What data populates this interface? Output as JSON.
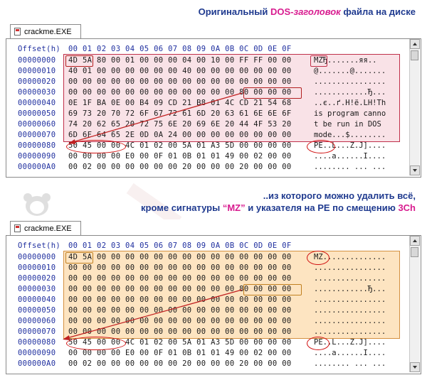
{
  "caption_top": {
    "pre": "Оригинальный ",
    "accent": "DOS-",
    "accent_italic": "заголовок",
    "post": " файла на диске"
  },
  "caption_mid": {
    "line1": "..из которого можно удалить всё,",
    "line2_pre": "кроме сигнатуры ",
    "line2_mz": "“MZ”",
    "line2_mid": " и указателя на PE по смещению ",
    "line2_off": "3Ch"
  },
  "colors": {
    "caption": "#1f3a8f",
    "accent": "#d81b8f",
    "offset": "#e07000",
    "box_red": "#b22020",
    "ellipse": "#d01010",
    "hl_pink": "#e896aa",
    "hl_orange": "#fac476"
  },
  "window_top": {
    "tab": "crackme.EXE",
    "header_offset": "Offset(h)",
    "header_hex": "00 01 02 03 04 05 06 07 08 09 0A 0B 0C 0D 0E 0F",
    "rows": [
      {
        "off": "00000000",
        "hex": "4D 5A 80 00 01 00 00 00 04 00 10 00 FF FF 00 00",
        "asc": "MZЂ.......яя.."
      },
      {
        "off": "00000010",
        "hex": "40 01 00 00 00 00 00 00 40 00 00 00 00 00 00 00",
        "asc": "@.......@......."
      },
      {
        "off": "00000020",
        "hex": "00 00 00 00 00 00 00 00 00 00 00 00 00 00 00 00",
        "asc": "................"
      },
      {
        "off": "00000030",
        "hex": "00 00 00 00 00 00 00 00 00 00 00 00 80 00 00 00",
        "asc": "............Ђ..."
      },
      {
        "off": "00000040",
        "hex": "0E 1F BA 0E 00 B4 09 CD 21 B8 01 4C CD 21 54 68",
        "asc": "..є..ґ.Н!ё.LН!Th"
      },
      {
        "off": "00000050",
        "hex": "69 73 20 70 72 6F 67 72 61 6D 20 63 61 6E 6E 6F",
        "asc": "is program canno"
      },
      {
        "off": "00000060",
        "hex": "74 20 62 65 20 72 75 6E 20 69 6E 20 44 4F 53 20",
        "asc": "t be run in DOS "
      },
      {
        "off": "00000070",
        "hex": "6D 6F 64 65 2E 0D 0A 24 00 00 00 00 00 00 00 00",
        "asc": "mode...$........"
      },
      {
        "off": "00000080",
        "hex": "50 45 00 00 4C 01 02 00 5A 01 A3 5D 00 00 00 00",
        "asc": "PE..L...Z.J]...."
      },
      {
        "off": "00000090",
        "hex": "00 00 00 00 E0 00 0F 01 0B 01 01 49 00 02 00 00",
        "asc": "....a......I...."
      },
      {
        "off": "000000A0",
        "hex": "00 02 00 00 00 00 00 00 20 00 00 00 20 00 00 00",
        "asc": "........ ... ..."
      }
    ]
  },
  "window_bottom": {
    "tab": "crackme.EXE",
    "header_offset": "Offset(h)",
    "header_hex": "00 01 02 03 04 05 06 07 08 09 0A 0B 0C 0D 0E 0F",
    "rows": [
      {
        "off": "00000000",
        "hex": "4D 5A 00 00 00 00 00 00 00 00 00 00 00 00 00 00",
        "asc": "MZ.............."
      },
      {
        "off": "00000010",
        "hex": "00 00 00 00 00 00 00 00 00 00 00 00 00 00 00 00",
        "asc": "................"
      },
      {
        "off": "00000020",
        "hex": "00 00 00 00 00 00 00 00 00 00 00 00 00 00 00 00",
        "asc": "................"
      },
      {
        "off": "00000030",
        "hex": "00 00 00 00 00 00 00 00 00 00 00 00 80 00 00 00",
        "asc": "............Ђ..."
      },
      {
        "off": "00000040",
        "hex": "00 00 00 00 00 00 00 00 00 00 00 00 00 00 00 00",
        "asc": "................"
      },
      {
        "off": "00000050",
        "hex": "00 00 00 00 00 00 00 00 00 00 00 00 00 00 00 00",
        "asc": "................"
      },
      {
        "off": "00000060",
        "hex": "00 00 00 00 00 00 00 00 00 00 00 00 00 00 00 00",
        "asc": "................"
      },
      {
        "off": "00000070",
        "hex": "00 00 00 00 00 00 00 00 00 00 00 00 00 00 00 00",
        "asc": "................"
      },
      {
        "off": "00000080",
        "hex": "50 45 00 00 4C 01 02 00 5A 01 A3 5D 00 00 00 00",
        "asc": "PE..L...Z.J]...."
      },
      {
        "off": "00000090",
        "hex": "00 00 00 00 E0 00 0F 01 0B 01 01 49 00 02 00 00",
        "asc": "....a......I...."
      },
      {
        "off": "000000A0",
        "hex": "00 02 00 00 00 00 00 00 20 00 00 00 20 00 00 00",
        "asc": "........ ... ..."
      }
    ]
  }
}
